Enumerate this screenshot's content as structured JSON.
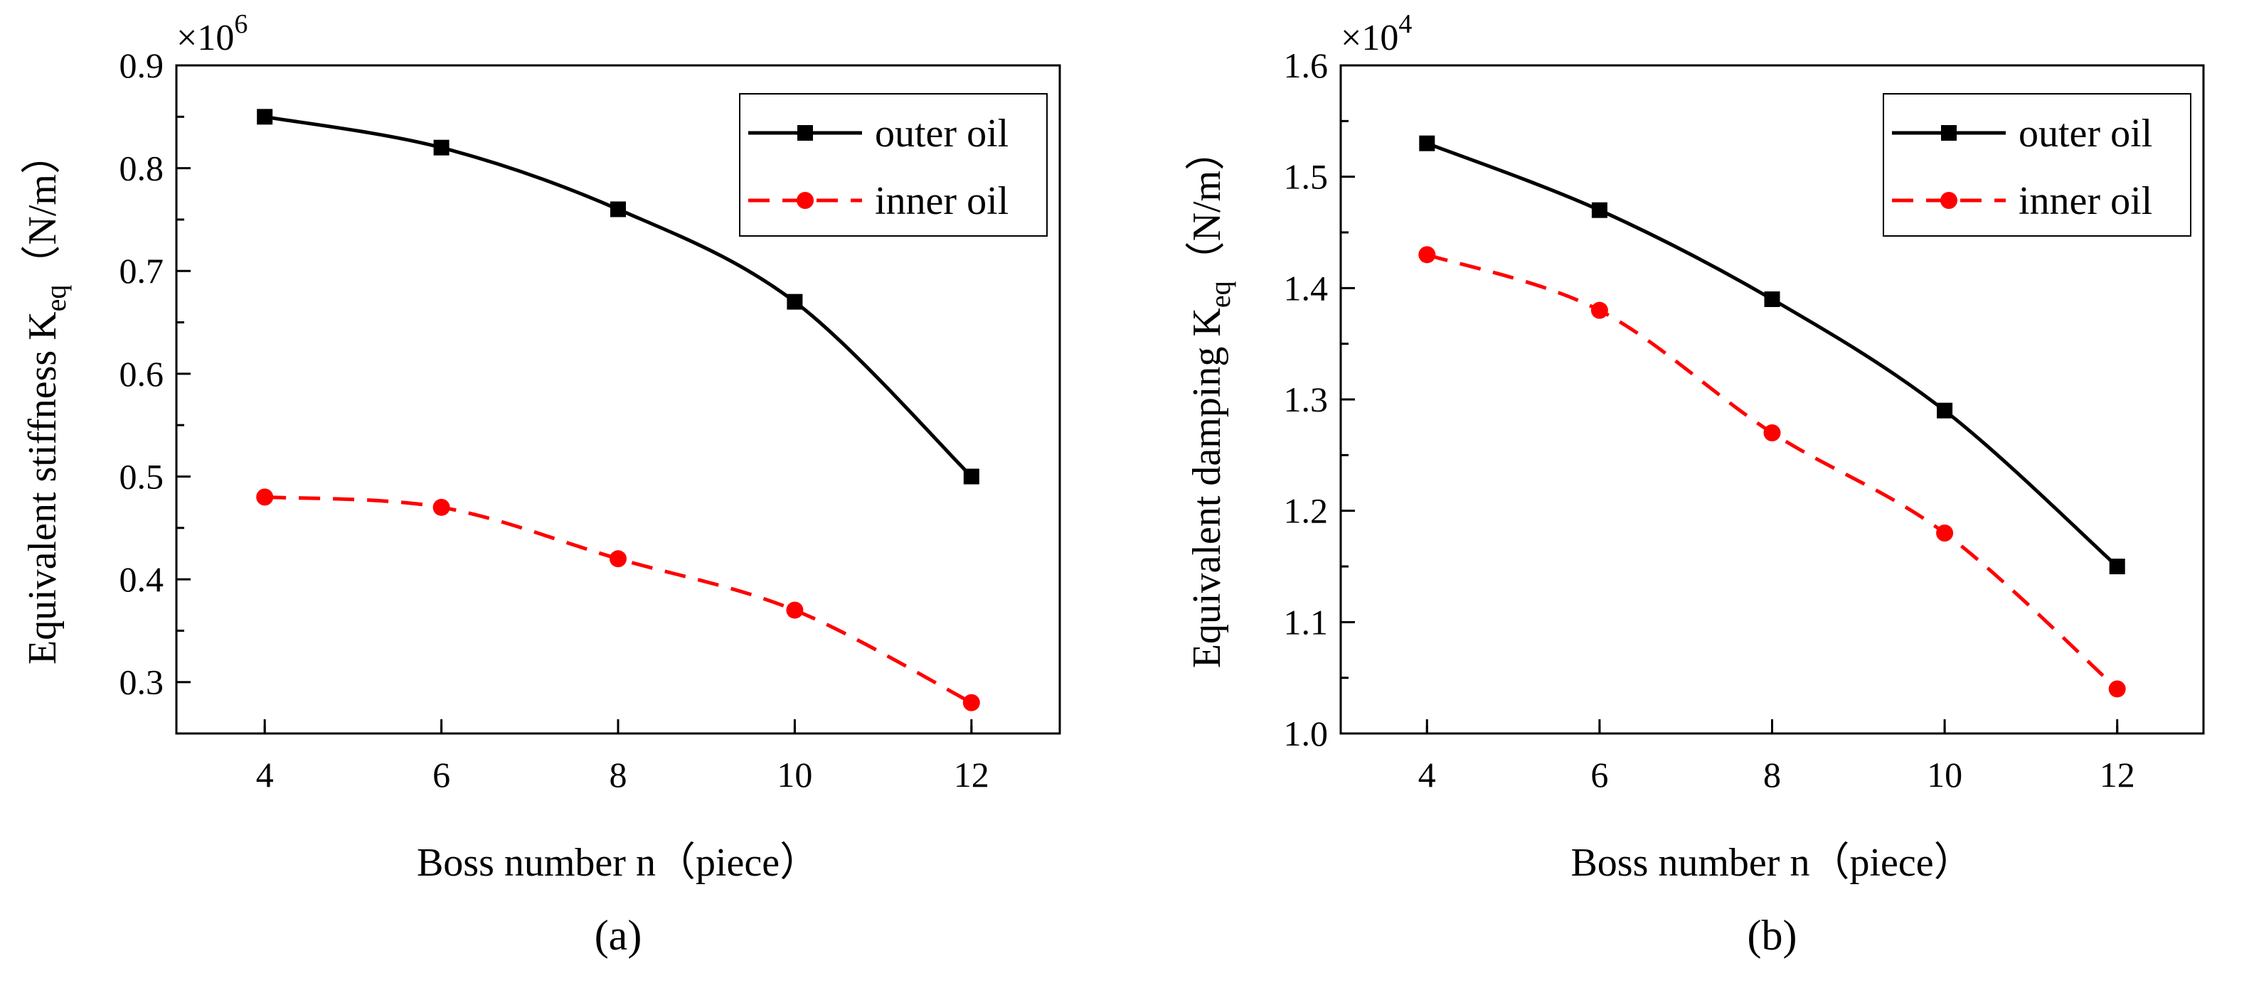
{
  "chart_data": [
    {
      "type": "line",
      "panel": "(a)",
      "x": [
        4,
        6,
        8,
        10,
        12
      ],
      "xlim": [
        3,
        13
      ],
      "xticks": [
        4,
        6,
        8,
        10,
        12
      ],
      "xlabel": "Boss number n（piece）",
      "ylabel": "Equivalent stiffness K",
      "ylabel_sub": "eq",
      "ylabel_unit": "（N/m）",
      "ylim": [
        0.25,
        0.9
      ],
      "yticks": [
        "0.3",
        "0.4",
        "0.5",
        "0.6",
        "0.7",
        "0.8",
        "0.9"
      ],
      "multiplier_base": "×10",
      "multiplier_exp": "6",
      "legend_position": "top-right",
      "series": [
        {
          "name": "outer oil",
          "color": "#000000",
          "dash": "solid",
          "marker": "square",
          "values": [
            0.85,
            0.82,
            0.76,
            0.67,
            0.5
          ]
        },
        {
          "name": "inner oil",
          "color": "#ff0000",
          "dash": "dashed",
          "marker": "circle",
          "values": [
            0.48,
            0.47,
            0.42,
            0.37,
            0.28
          ]
        }
      ]
    },
    {
      "type": "line",
      "panel": "(b)",
      "x": [
        4,
        6,
        8,
        10,
        12
      ],
      "xlim": [
        3,
        13
      ],
      "xticks": [
        4,
        6,
        8,
        10,
        12
      ],
      "xlabel": "Boss number n（piece）",
      "ylabel": "Equivalent damping K",
      "ylabel_sub": "eq",
      "ylabel_unit": "（N/m）",
      "ylim": [
        1.0,
        1.6
      ],
      "yticks": [
        "1.0",
        "1.1",
        "1.2",
        "1.3",
        "1.4",
        "1.5",
        "1.6"
      ],
      "multiplier_base": "×10",
      "multiplier_exp": "4",
      "legend_position": "top-right",
      "series": [
        {
          "name": "outer oil",
          "color": "#000000",
          "dash": "solid",
          "marker": "square",
          "values": [
            1.53,
            1.47,
            1.39,
            1.29,
            1.15
          ]
        },
        {
          "name": "inner oil",
          "color": "#ff0000",
          "dash": "dashed",
          "marker": "circle",
          "values": [
            1.43,
            1.38,
            1.27,
            1.18,
            1.04
          ]
        }
      ]
    }
  ]
}
